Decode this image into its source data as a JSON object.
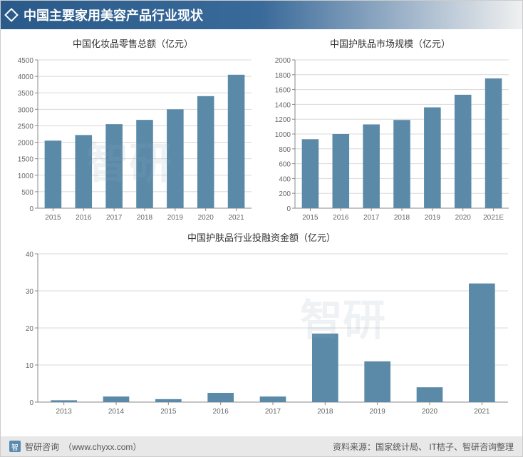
{
  "header": {
    "title": "中国主要家用美容产品行业现状"
  },
  "chart1": {
    "type": "bar",
    "title": "中国化妆品零售总额（亿元）",
    "categories": [
      "2015",
      "2016",
      "2017",
      "2018",
      "2019",
      "2020",
      "2021"
    ],
    "values": [
      2050,
      2220,
      2550,
      2680,
      3000,
      3400,
      4050
    ],
    "ymin": 0,
    "ymax": 4500,
    "ystep": 500,
    "bar_color": "#5a8aa8",
    "grid_color": "#d8d8d8",
    "axis_color": "#888",
    "text_color": "#666",
    "title_fontsize": 13,
    "tick_fontsize": 10,
    "bar_width_ratio": 0.55
  },
  "chart2": {
    "type": "bar",
    "title": "中国护肤品市场规模（亿元）",
    "categories": [
      "2015",
      "2016",
      "2017",
      "2018",
      "2019",
      "2020",
      "2021E"
    ],
    "values": [
      930,
      1000,
      1130,
      1190,
      1360,
      1530,
      1750
    ],
    "ymin": 0,
    "ymax": 2000,
    "ystep": 200,
    "bar_color": "#5a8aa8",
    "grid_color": "#d8d8d8",
    "axis_color": "#888",
    "text_color": "#666",
    "title_fontsize": 13,
    "tick_fontsize": 10,
    "bar_width_ratio": 0.55
  },
  "chart3": {
    "type": "bar",
    "title": "中国护肤品行业投融资金额（亿元）",
    "categories": [
      "2013",
      "2014",
      "2015",
      "2016",
      "2017",
      "2018",
      "2019",
      "2020",
      "2021"
    ],
    "values": [
      0.5,
      1.5,
      0.8,
      2.5,
      1.5,
      18.5,
      11,
      4,
      32
    ],
    "ymin": 0,
    "ymax": 40,
    "ystep": 10,
    "bar_color": "#5a8aa8",
    "grid_color": "#d8d8d8",
    "axis_color": "#888",
    "text_color": "#666",
    "title_fontsize": 13,
    "tick_fontsize": 10,
    "bar_width_ratio": 0.5
  },
  "footer": {
    "brand": "智研咨询",
    "url": "（www.chyxx.com）",
    "source": "资料来源：国家统计局、 IT桔子、智研咨询整理"
  },
  "watermark": "智研"
}
